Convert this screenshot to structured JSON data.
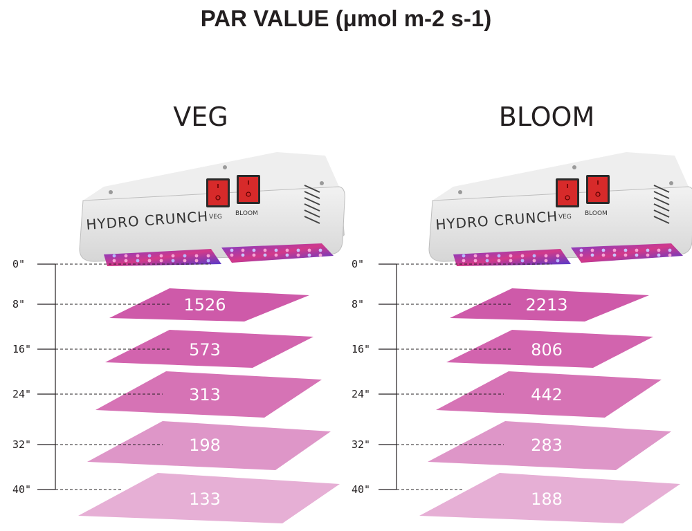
{
  "title": "PAR VALUE (μmol m-2 s-1)",
  "colors": {
    "text": "#231f20",
    "slab": [
      "#ce5aa9",
      "#d264ae",
      "#d673b5",
      "#de96c8",
      "#e6afd5"
    ],
    "housing": "#e6e6e6",
    "switch": "#d72a2a"
  },
  "chart_data": {
    "type": "diagram",
    "depth_unit": "inches",
    "depths": [
      "0\"",
      "8\"",
      "16\"",
      "24\"",
      "32\"",
      "40\""
    ],
    "panels": [
      {
        "label": "VEG",
        "brand": "HYDRO CRUNCH",
        "switches": [
          "VEG",
          "BLOOM"
        ],
        "values": [
          1526,
          573,
          313,
          198,
          133
        ]
      },
      {
        "label": "BLOOM",
        "brand": "HYDRO CRUNCH",
        "switches": [
          "VEG",
          "BLOOM"
        ],
        "values": [
          2213,
          806,
          442,
          283,
          188
        ]
      }
    ]
  }
}
